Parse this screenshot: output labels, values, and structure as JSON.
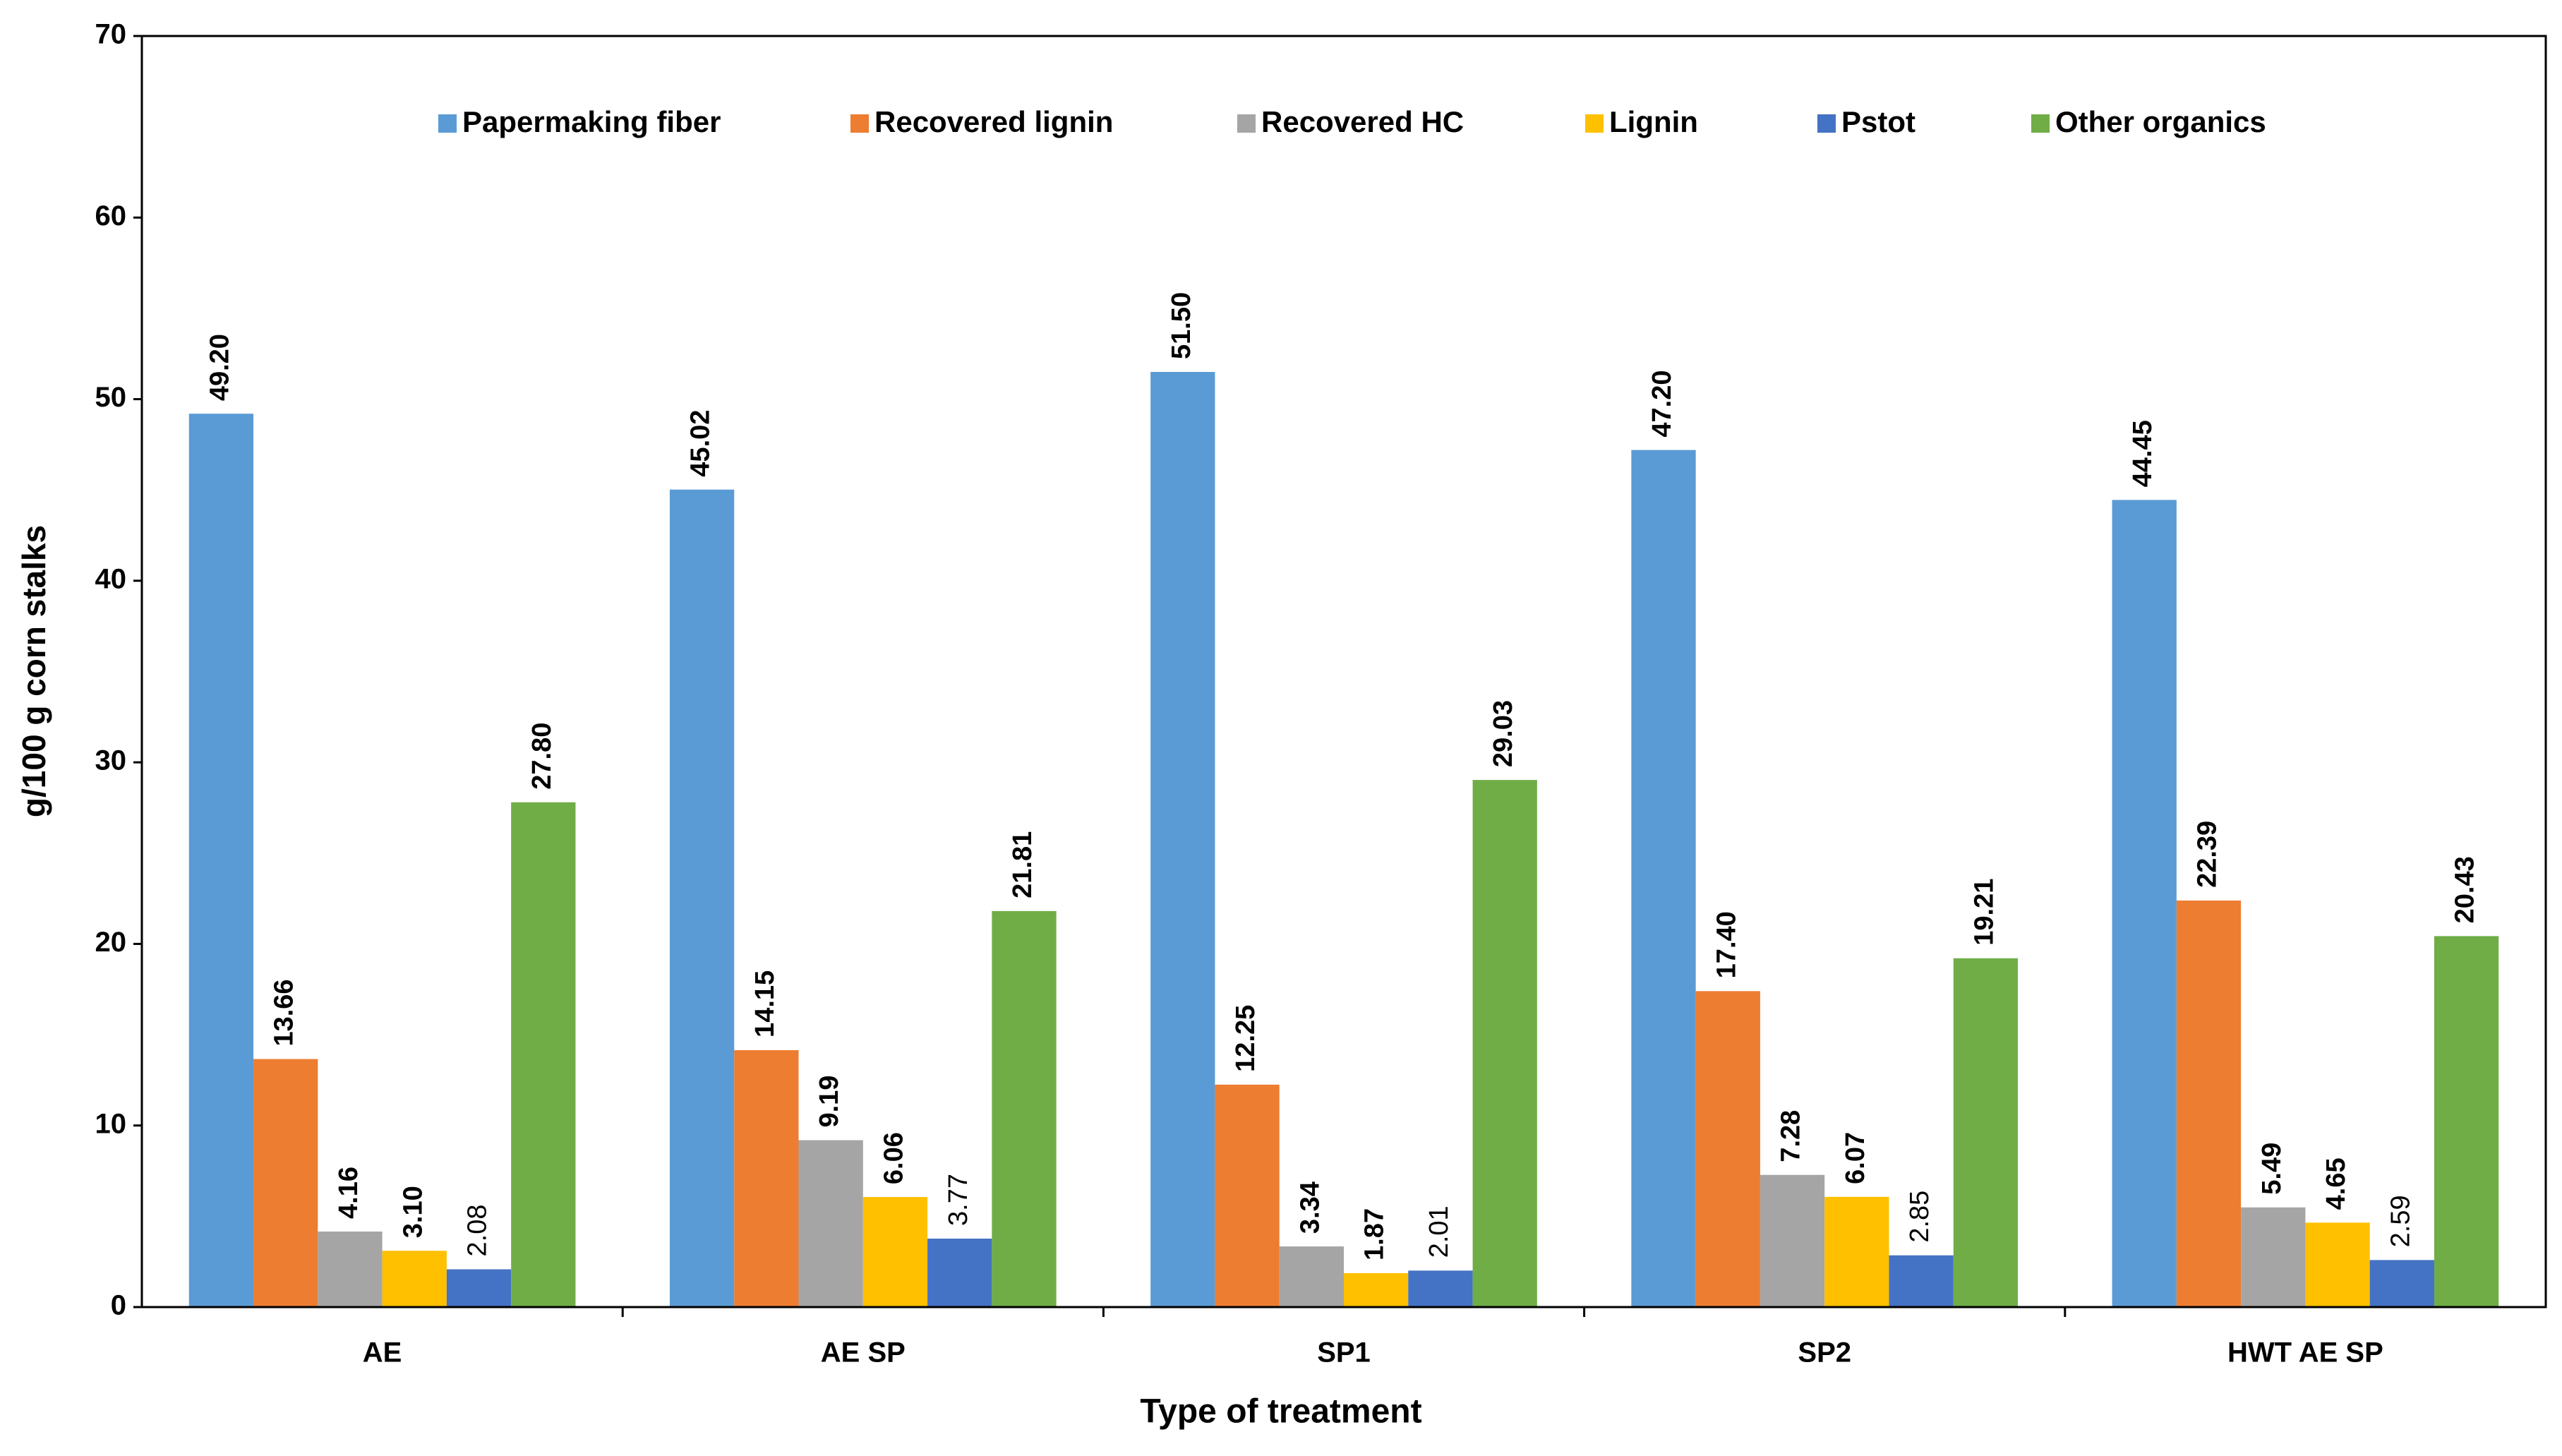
{
  "chart_data": {
    "type": "bar",
    "x_label": "Type of treatment",
    "y_label": "g/100 g corn stalks",
    "categories": [
      "AE",
      "AE SP",
      "SP1",
      "SP2",
      "HWT AE SP"
    ],
    "series": [
      {
        "name": "Papermaking fiber",
        "color": "#5b9bd5",
        "values": [
          49.2,
          45.02,
          51.5,
          47.2,
          44.45
        ],
        "value_labels": [
          "49.20",
          "45.02",
          "51.50",
          "47.20",
          "44.45"
        ]
      },
      {
        "name": "Recovered lignin",
        "color": "#ed7d31",
        "values": [
          13.66,
          14.15,
          12.25,
          17.4,
          22.39
        ],
        "value_labels": [
          "13.66",
          "14.15",
          "12.25",
          "17.40",
          "22.39"
        ]
      },
      {
        "name": "Recovered HC",
        "color": "#a5a5a5",
        "values": [
          4.16,
          9.19,
          3.34,
          7.28,
          5.49
        ],
        "value_labels": [
          "4.16",
          "9.19",
          "3.34",
          "7.28",
          "5.49"
        ]
      },
      {
        "name": "Lignin",
        "color": "#ffc000",
        "values": [
          3.1,
          6.06,
          1.87,
          6.07,
          4.65
        ],
        "value_labels": [
          "3.10",
          "6.06",
          "1.87",
          "6.07",
          "4.65"
        ]
      },
      {
        "name": "Pstot",
        "color": "#4472c4",
        "values": [
          2.08,
          3.77,
          2.01,
          2.85,
          2.59
        ],
        "value_labels": [
          "2.08",
          "3.77",
          "2.01",
          "2.85",
          "2.59"
        ]
      },
      {
        "name": "Other organics",
        "color": "#70ad47",
        "values": [
          27.8,
          21.81,
          29.03,
          19.21,
          20.43
        ],
        "value_labels": [
          "27.80",
          "21.81",
          "29.03",
          "19.21",
          "20.43"
        ]
      }
    ],
    "ylim": [
      0,
      70
    ],
    "yticks": [
      0,
      10,
      20,
      30,
      40,
      50,
      60,
      70
    ],
    "grid": false,
    "legend": "top"
  }
}
